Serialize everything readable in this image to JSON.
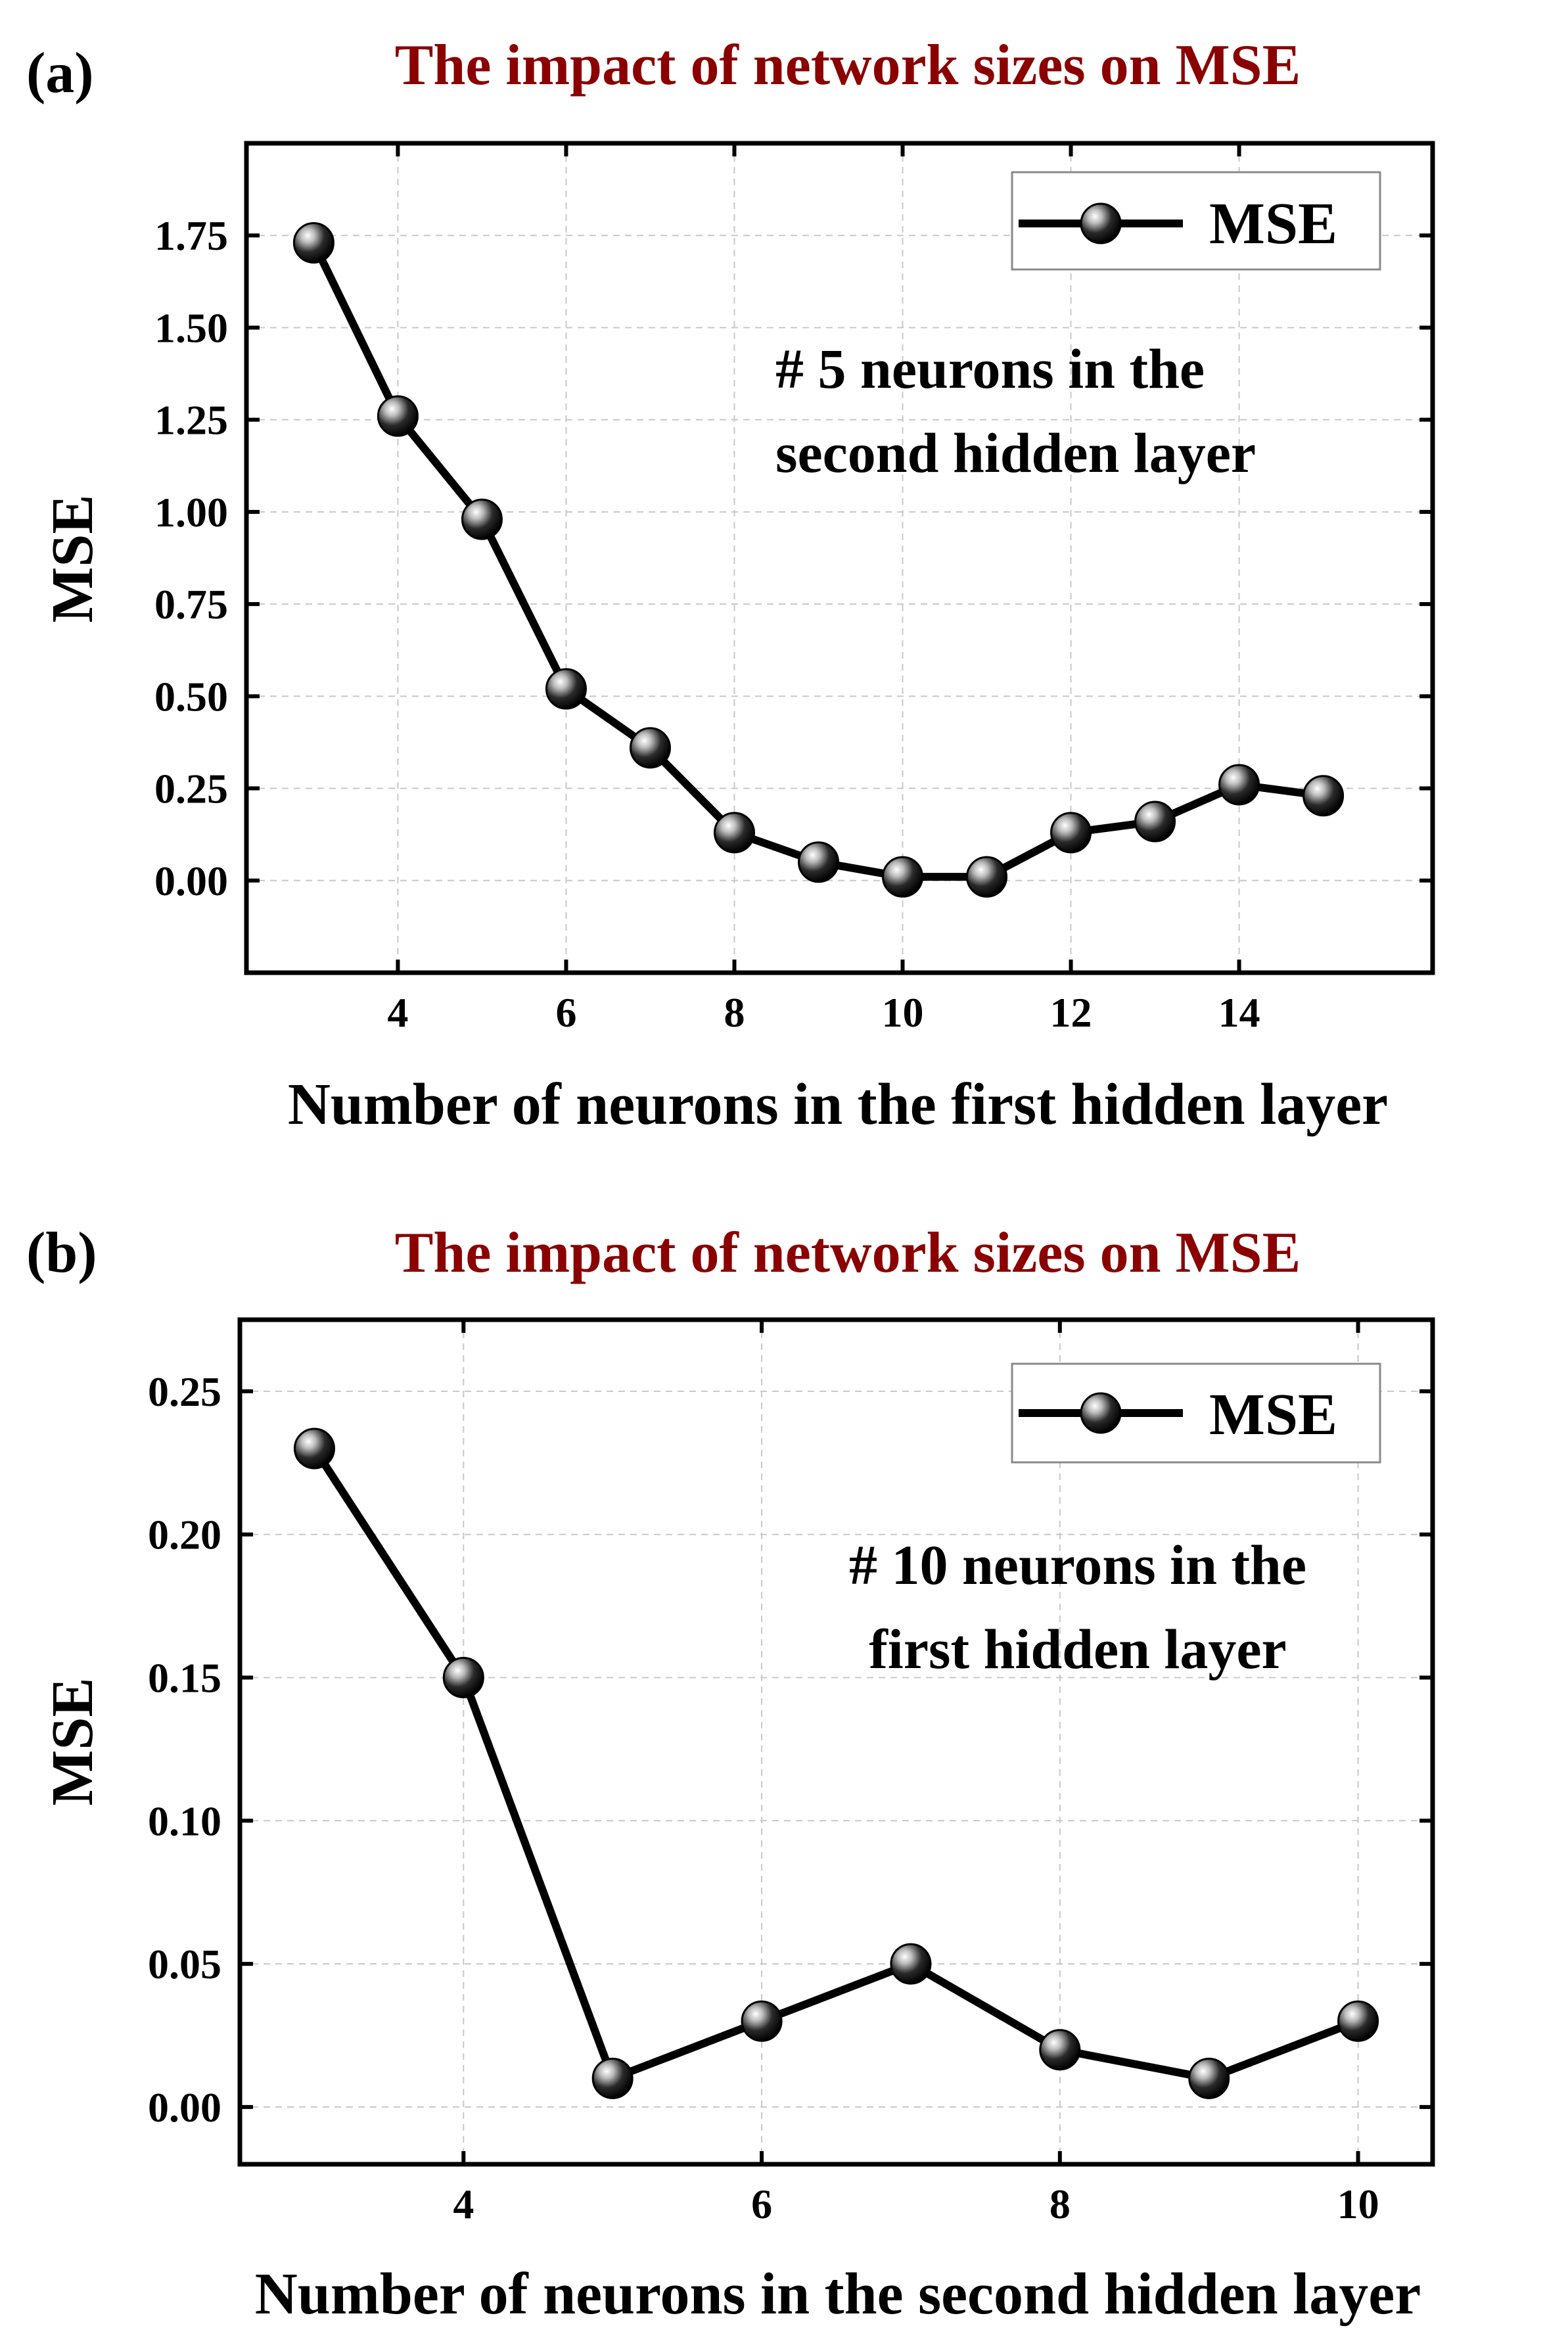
{
  "chart_data": [
    {
      "panel_label": "(a)",
      "type": "line",
      "title": "The impact of network sizes on MSE",
      "xlabel": "Number of neurons in the first hidden layer",
      "ylabel": "MSE",
      "xlim": [
        2.2,
        16.3
      ],
      "ylim": [
        -0.25,
        2.0
      ],
      "xticks": [
        4,
        6,
        8,
        10,
        12,
        14
      ],
      "xtick_labels": [
        "4",
        "6",
        "8",
        "10",
        "12",
        "14"
      ],
      "yticks": [
        0,
        0.25,
        0.5,
        0.75,
        1.0,
        1.25,
        1.5,
        1.75
      ],
      "ytick_labels": [
        "0.00",
        "0.25",
        "0.50",
        "0.75",
        "1.00",
        "1.25",
        "1.50",
        "1.75"
      ],
      "grid": true,
      "legend": {
        "position": "top-right",
        "entries": [
          "MSE"
        ]
      },
      "annotation": [
        "# 5 neurons in the",
        "second hidden layer"
      ],
      "series": [
        {
          "name": "MSE",
          "x": [
            3,
            4,
            5,
            6,
            7,
            8,
            9,
            10,
            11,
            12,
            13,
            14,
            15
          ],
          "y": [
            1.73,
            1.26,
            0.98,
            0.52,
            0.36,
            0.13,
            0.05,
            0.01,
            0.01,
            0.13,
            0.16,
            0.26,
            0.23
          ]
        }
      ]
    },
    {
      "panel_label": "(b)",
      "type": "line",
      "title": "The impact of network sizes on MSE",
      "xlabel": "Number of neurons in the second hidden layer",
      "ylabel": "MSE",
      "xlim": [
        2.5,
        10.5
      ],
      "ylim": [
        -0.02,
        0.275
      ],
      "xticks": [
        4,
        6,
        8,
        10
      ],
      "xtick_labels": [
        "4",
        "6",
        "8",
        "10"
      ],
      "yticks": [
        0,
        0.05,
        0.1,
        0.15,
        0.2,
        0.25
      ],
      "ytick_labels": [
        "0.00",
        "0.05",
        "0.10",
        "0.15",
        "0.20",
        "0.25"
      ],
      "grid": true,
      "legend": {
        "position": "top-right",
        "entries": [
          "MSE"
        ]
      },
      "annotation": [
        "# 10 neurons in the",
        "first hidden layer"
      ],
      "series": [
        {
          "name": "MSE",
          "x": [
            3,
            4,
            5,
            6,
            7,
            8,
            9,
            10
          ],
          "y": [
            0.23,
            0.15,
            0.01,
            0.03,
            0.05,
            0.02,
            0.01,
            0.03
          ]
        }
      ]
    }
  ]
}
